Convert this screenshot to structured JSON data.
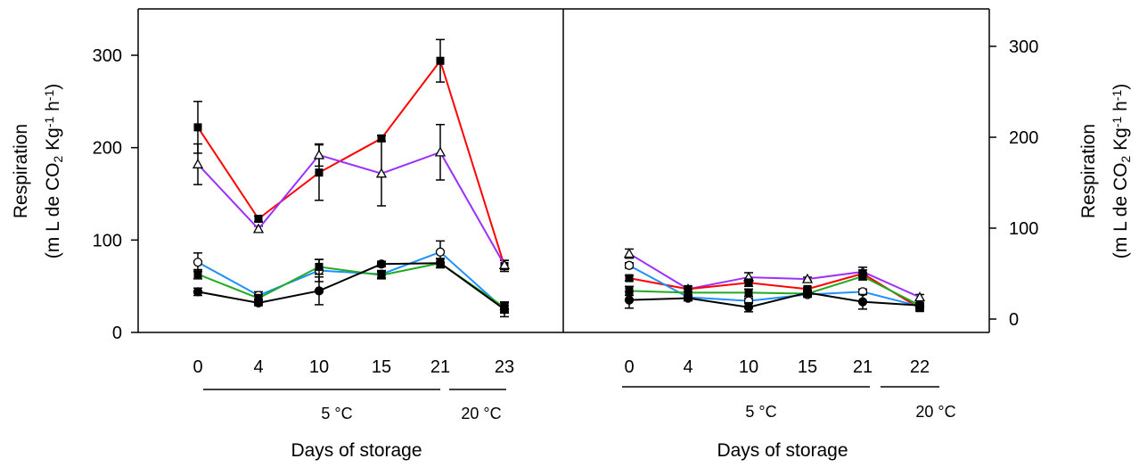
{
  "chart_data": [
    {
      "type": "line",
      "ylabel_line1": "Respiration",
      "ylabel_line2_parts": [
        "(m L de CO",
        "2",
        " Kg",
        "-1",
        " h",
        "-1",
        ")"
      ],
      "ylim": [
        0,
        350
      ],
      "yticks": [
        0,
        100,
        200,
        300
      ],
      "ytick_labels": [
        "0",
        "100",
        "200",
        "300"
      ],
      "categories": [
        "0",
        "4",
        "10",
        "15",
        "21",
        "23"
      ],
      "temperature_labels": [
        "5 °C",
        "20 °C"
      ],
      "xlabel": "Days of storage",
      "grid": false,
      "series": [
        {
          "color": "#ff0000",
          "marker": "square",
          "values": [
            222,
            123,
            173,
            210,
            294,
            72
          ],
          "err": [
            28,
            3,
            30,
            3,
            23,
            6
          ]
        },
        {
          "color": "#9b30ff",
          "marker": "triangle",
          "values": [
            182,
            112,
            192,
            172,
            195,
            73
          ],
          "err": [
            22,
            3,
            12,
            35,
            30,
            5
          ]
        },
        {
          "color": "#1e90ff",
          "marker": "circle",
          "values": [
            76,
            40,
            67,
            63,
            87,
            25
          ],
          "err": [
            10,
            4,
            12,
            4,
            12,
            4
          ]
        },
        {
          "color": "#22aa22",
          "marker": "square",
          "values": [
            63,
            37,
            71,
            62,
            75,
            27
          ],
          "err": [
            5,
            4,
            8,
            4,
            5,
            5
          ]
        },
        {
          "color": "#000000",
          "marker": "circle",
          "values": [
            44,
            32,
            45,
            74,
            75,
            25
          ],
          "err": [
            4,
            3,
            15,
            3,
            5,
            8
          ]
        }
      ]
    },
    {
      "type": "line",
      "ylabel_line1": "Respiration",
      "ylabel_line2_parts": [
        "(m L de CO",
        "2",
        " Kg",
        "-1",
        " h",
        "-1",
        ")"
      ],
      "ylim": [
        0,
        350
      ],
      "yticks": [
        0,
        100,
        200,
        300
      ],
      "ytick_labels": [
        "0",
        "100",
        "200",
        "300"
      ],
      "categories": [
        "0",
        "4",
        "10",
        "15",
        "21",
        "22"
      ],
      "temperature_labels": [
        "5 °C",
        "20 °C"
      ],
      "xlabel": "Days of storage",
      "grid": false,
      "series": [
        {
          "color": "#9b30ff",
          "marker": "triangle",
          "values": [
            72,
            33,
            46,
            44,
            52,
            24
          ],
          "err": [
            5,
            3,
            5,
            2,
            5,
            3
          ]
        },
        {
          "color": "#ff0000",
          "marker": "square",
          "values": [
            45,
            33,
            40,
            33,
            50,
            12
          ],
          "err": [
            3,
            3,
            4,
            2,
            4,
            3
          ]
        },
        {
          "color": "#1e90ff",
          "marker": "circle",
          "values": [
            59,
            24,
            20,
            27,
            30,
            14
          ],
          "err": [
            3,
            3,
            3,
            3,
            3,
            3
          ]
        },
        {
          "color": "#22aa22",
          "marker": "square",
          "values": [
            31,
            29,
            29,
            28,
            47,
            15
          ],
          "err": [
            5,
            4,
            4,
            3,
            4,
            3
          ]
        },
        {
          "color": "#000000",
          "marker": "circle",
          "values": [
            21,
            23,
            13,
            29,
            19,
            15
          ],
          "err": [
            9,
            3,
            5,
            3,
            8,
            3
          ]
        }
      ]
    }
  ]
}
